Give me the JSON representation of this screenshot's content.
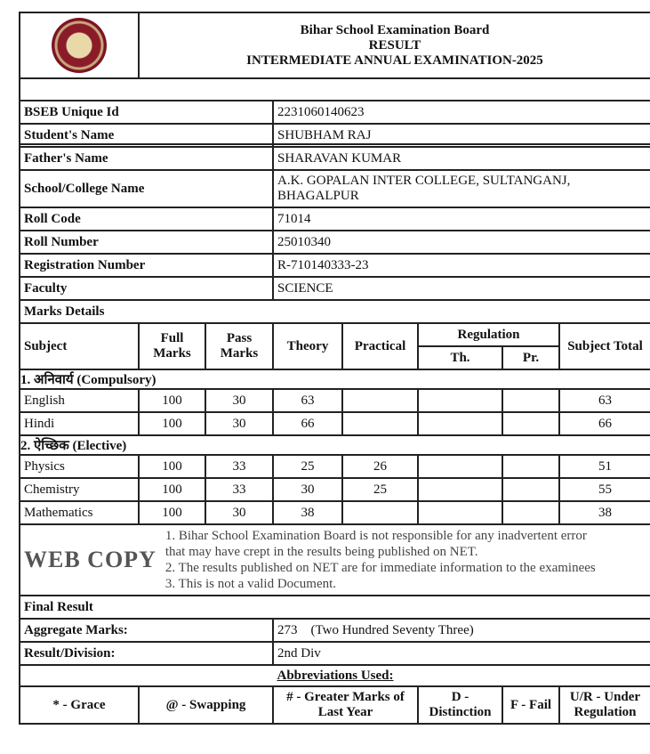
{
  "header": {
    "board": "Bihar School Examination Board",
    "result": "RESULT",
    "exam": "INTERMEDIATE ANNUAL EXAMINATION-2025"
  },
  "student": [
    {
      "label": "BSEB Unique Id",
      "value": "2231060140623"
    },
    {
      "label": "Student's Name",
      "value": "SHUBHAM RAJ"
    },
    {
      "label": "Father's Name",
      "value": "SHARAVAN KUMAR"
    },
    {
      "label": "School/College Name",
      "value": "A.K. GOPALAN INTER COLLEGE, SULTANGANJ, BHAGALPUR"
    },
    {
      "label": "Roll Code",
      "value": "71014"
    },
    {
      "label": "Roll Number",
      "value": "25010340"
    },
    {
      "label": "Registration Number",
      "value": "R-710140333-23"
    },
    {
      "label": "Faculty",
      "value": "SCIENCE"
    }
  ],
  "marks": {
    "section_label": "Marks Details",
    "headers": {
      "subject": "Subject",
      "full": "Full Marks",
      "pass": "Pass Marks",
      "theory": "Theory",
      "practical": "Practical",
      "regulation": "Regulation",
      "reg_th": "Th.",
      "reg_pr": "Pr.",
      "total": "Subject Total"
    },
    "groups": [
      {
        "title": "1. अनिवार्य (Compulsory)",
        "rows": [
          {
            "subject": "English",
            "full": "100",
            "pass": "30",
            "theory": "63",
            "practical": "",
            "th": "",
            "pr": "",
            "total": "63"
          },
          {
            "subject": "Hindi",
            "full": "100",
            "pass": "30",
            "theory": "66",
            "practical": "",
            "th": "",
            "pr": "",
            "total": "66"
          }
        ]
      },
      {
        "title": "2. ऐच्छिक (Elective)",
        "rows": [
          {
            "subject": "Physics",
            "full": "100",
            "pass": "33",
            "theory": "25",
            "practical": "26",
            "th": "",
            "pr": "",
            "total": "51"
          },
          {
            "subject": "Chemistry",
            "full": "100",
            "pass": "33",
            "theory": "30",
            "practical": "25",
            "th": "",
            "pr": "",
            "total": "55"
          },
          {
            "subject": "Mathematics",
            "full": "100",
            "pass": "30",
            "theory": "38",
            "practical": "",
            "th": "",
            "pr": "",
            "total": "38"
          }
        ]
      }
    ]
  },
  "final": {
    "label": "Final Result",
    "aggregate_label": "Aggregate Marks:",
    "aggregate_value": "273    (Two Hundred Seventy Three)",
    "division_label": "Result/Division:",
    "division_value": "2nd Div"
  },
  "abbreviations": {
    "title": "Abbreviations Used:",
    "items": [
      "* - Grace",
      "@ - Swapping",
      "# - Greater Marks of Last Year",
      "D - Distinction",
      "F - Fail",
      "U/R - Under Regulation"
    ]
  },
  "watermark": {
    "big": "WEB COPY",
    "lines": [
      "1. Bihar School Examination Board is not responsible for any inadvertent error",
      "that may have crept in the results being published on NET.",
      "2. The results published on NET are for immediate information to the examinees",
      "3. This is not a valid Document."
    ]
  }
}
